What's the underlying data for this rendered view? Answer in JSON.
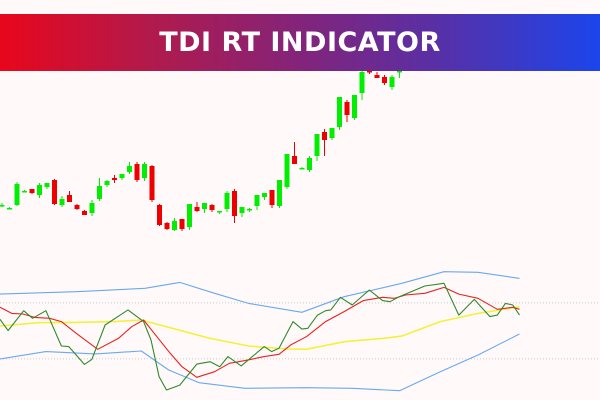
{
  "banner": {
    "title": "TDI RT INDICATOR",
    "gradient": [
      "#e9061c",
      "#83247a",
      "#1b45ec"
    ]
  },
  "chart_data": [
    {
      "type": "candlestick",
      "colors": {
        "up": "#00ee00",
        "down": "#ee0000"
      },
      "grid": false,
      "candles": [
        [
          94,
          97,
          93,
          95
        ],
        [
          92,
          93,
          91,
          92
        ],
        [
          95,
          118,
          94,
          116
        ],
        [
          109,
          110,
          108,
          109
        ],
        [
          111,
          111,
          106,
          107
        ],
        [
          105,
          117,
          102,
          115
        ],
        [
          113,
          116,
          111,
          117
        ],
        [
          120,
          121,
          95,
          96
        ],
        [
          95,
          104,
          93,
          101
        ],
        [
          105,
          109,
          98,
          98
        ],
        [
          95,
          96,
          90,
          91
        ],
        [
          89,
          90,
          85,
          85
        ],
        [
          87,
          100,
          84,
          97
        ],
        [
          101,
          122,
          99,
          114
        ],
        [
          115,
          120,
          113,
          119
        ],
        [
          122,
          125,
          117,
          120
        ],
        [
          122,
          126,
          120,
          126
        ],
        [
          128,
          138,
          126,
          134
        ],
        [
          136,
          138,
          118,
          120
        ],
        [
          122,
          138,
          119,
          136
        ],
        [
          134,
          135,
          98,
          100
        ],
        [
          95,
          96,
          74,
          75
        ],
        [
          77,
          78,
          70,
          71
        ],
        [
          70,
          82,
          69,
          79
        ],
        [
          81,
          81,
          69,
          71
        ],
        [
          73,
          96,
          70,
          96
        ],
        [
          93,
          98,
          88,
          89
        ],
        [
          91,
          97,
          87,
          97
        ],
        [
          95,
          96,
          88,
          90
        ],
        [
          88,
          89,
          86,
          89
        ],
        [
          91,
          109,
          88,
          107
        ],
        [
          109,
          111,
          77,
          84
        ],
        [
          87,
          93,
          83,
          93
        ],
        [
          90,
          92,
          88,
          91
        ],
        [
          94,
          105,
          90,
          105
        ],
        [
          103,
          107,
          100,
          107
        ],
        [
          110,
          110,
          92,
          95
        ],
        [
          94,
          120,
          92,
          120
        ],
        [
          113,
          146,
          111,
          146
        ],
        [
          144,
          158,
          137,
          136
        ],
        [
          132,
          133,
          131,
          132
        ],
        [
          130,
          144,
          128,
          142
        ],
        [
          144,
          166,
          139,
          166
        ],
        [
          168,
          171,
          144,
          160
        ],
        [
          162,
          172,
          160,
          172
        ],
        [
          173,
          203,
          170,
          203
        ],
        [
          198,
          200,
          178,
          185
        ],
        [
          182,
          205,
          180,
          205
        ],
        [
          207,
          232,
          200,
          228
        ],
        [
          229,
          230,
          226,
          228
        ],
        [
          225,
          228,
          222,
          222
        ],
        [
          223,
          225,
          215,
          217
        ],
        [
          213,
          225,
          210,
          223
        ],
        [
          228,
          232,
          222,
          229
        ]
      ]
    },
    {
      "type": "line",
      "levels": [
        68,
        32
      ],
      "series": [
        {
          "color": "#6aa8ef",
          "points": [
            [
              0,
              73.7
            ],
            [
              10.3,
              75.2
            ],
            [
              19.6,
              77.4
            ],
            [
              24.3,
              81.2
            ],
            [
              29.0,
              74.2
            ],
            [
              33.6,
              67.7
            ],
            [
              40.8,
              62.0
            ],
            [
              46.5,
              72.0
            ],
            [
              54.3,
              80.6
            ],
            [
              60.0,
              88.1
            ],
            [
              64.6,
              87.7
            ],
            [
              70.2,
              83.8
            ]
          ]
        },
        {
          "color": "#6aa8ef",
          "points": [
            [
              0,
              32.0
            ],
            [
              6.2,
              36.7
            ],
            [
              12.9,
              35.2
            ],
            [
              19.1,
              37.1
            ],
            [
              22.8,
              24.9
            ],
            [
              26.9,
              16.7
            ],
            [
              33.1,
              13.1
            ],
            [
              41.4,
              13.5
            ],
            [
              47.6,
              13.1
            ],
            [
              54.0,
              11.6
            ],
            [
              59.5,
              23.8
            ],
            [
              64.6,
              34.5
            ],
            [
              70.2,
              48.0
            ]
          ]
        },
        {
          "color": "#f5f03a",
          "points": [
            [
              0,
              53.2
            ],
            [
              5.2,
              55.3
            ],
            [
              10.3,
              55.5
            ],
            [
              15.5,
              56.0
            ],
            [
              19.1,
              57.0
            ],
            [
              23.3,
              51.7
            ],
            [
              28.4,
              45.2
            ],
            [
              33.6,
              40.3
            ],
            [
              38.8,
              38.4
            ],
            [
              41.4,
              38.2
            ],
            [
              46.5,
              43.1
            ],
            [
              51.7,
              45.2
            ],
            [
              54.3,
              46.7
            ],
            [
              59.5,
              56.0
            ],
            [
              64.6,
              61.3
            ],
            [
              70.2,
              65.6
            ]
          ]
        },
        {
          "color": "#e8221f",
          "points": [
            [
              0,
              65.2
            ],
            [
              1.6,
              61.3
            ],
            [
              3.1,
              60.9
            ],
            [
              4.7,
              58.7
            ],
            [
              6.7,
              58.1
            ],
            [
              8.3,
              56.0
            ],
            [
              10.3,
              48.5
            ],
            [
              13.2,
              38.2
            ],
            [
              16.0,
              45.2
            ],
            [
              17.8,
              52.7
            ],
            [
              19.4,
              57.0
            ],
            [
              21.2,
              46.3
            ],
            [
              23.0,
              35.6
            ],
            [
              24.6,
              27.0
            ],
            [
              26.6,
              20.2
            ],
            [
              29.0,
              23.8
            ],
            [
              31.0,
              29.2
            ],
            [
              33.1,
              30.9
            ],
            [
              35.7,
              33.5
            ],
            [
              37.7,
              35.0
            ],
            [
              39.3,
              41.0
            ],
            [
              41.4,
              46.3
            ],
            [
              44.0,
              56.0
            ],
            [
              46.5,
              62.4
            ],
            [
              49.1,
              69.5
            ],
            [
              51.7,
              71.6
            ],
            [
              53.3,
              71.0
            ],
            [
              54.8,
              73.1
            ],
            [
              57.4,
              74.2
            ],
            [
              60.0,
              78.0
            ],
            [
              62.0,
              73.7
            ],
            [
              64.6,
              71.0
            ],
            [
              67.2,
              63.9
            ],
            [
              69.3,
              65.2
            ],
            [
              70.2,
              63.9
            ]
          ]
        },
        {
          "color": "#2e8a2a",
          "points": [
            [
              0,
              57.5
            ],
            [
              1.1,
              50.2
            ],
            [
              3.2,
              63.0
            ],
            [
              4.4,
              58.1
            ],
            [
              6.2,
              63.0
            ],
            [
              8.3,
              40.3
            ],
            [
              9.3,
              39.9
            ],
            [
              11.4,
              28.5
            ],
            [
              12.4,
              31.7
            ],
            [
              14.2,
              53.8
            ],
            [
              17.3,
              63.5
            ],
            [
              19.4,
              56.0
            ],
            [
              20.4,
              44.2
            ],
            [
              21.5,
              20.6
            ],
            [
              22.5,
              12.0
            ],
            [
              24.3,
              15.2
            ],
            [
              26.6,
              28.7
            ],
            [
              28.4,
              30.2
            ],
            [
              29.7,
              27.0
            ],
            [
              30.8,
              33.5
            ],
            [
              32.6,
              27.5
            ],
            [
              35.7,
              39.9
            ],
            [
              36.7,
              36.7
            ],
            [
              37.7,
              38.8
            ],
            [
              39.6,
              56.0
            ],
            [
              40.8,
              51.2
            ],
            [
              41.6,
              51.7
            ],
            [
              42.9,
              60.2
            ],
            [
              44.0,
              63.0
            ],
            [
              44.7,
              63.5
            ],
            [
              46.0,
              71.6
            ],
            [
              47.6,
              66.7
            ],
            [
              49.9,
              76.3
            ],
            [
              51.7,
              69.5
            ],
            [
              52.7,
              68.8
            ],
            [
              53.8,
              71.6
            ],
            [
              57.4,
              78.9
            ],
            [
              60.0,
              80.6
            ],
            [
              62.0,
              60.2
            ],
            [
              64.1,
              70.3
            ],
            [
              66.2,
              59.2
            ],
            [
              67.2,
              60.2
            ],
            [
              68.3,
              67.7
            ],
            [
              69.3,
              66.7
            ],
            [
              70.2,
              60.2
            ]
          ]
        }
      ]
    }
  ]
}
